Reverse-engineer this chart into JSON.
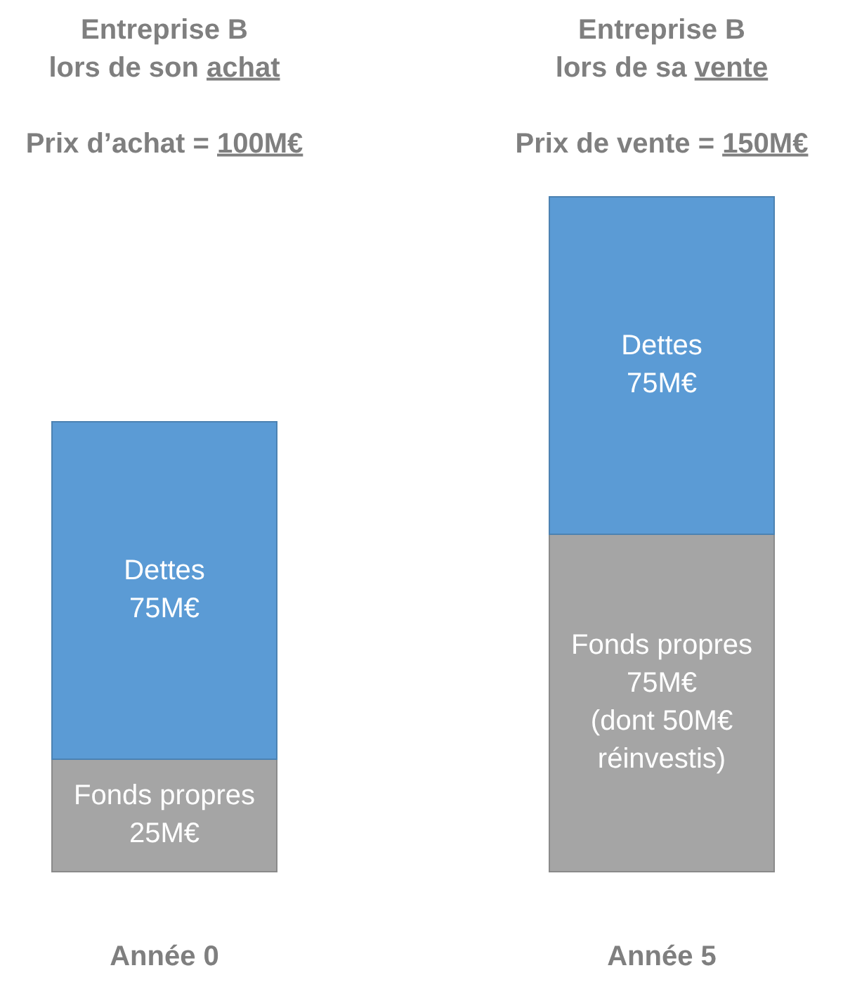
{
  "chart_data": {
    "type": "bar",
    "stacked": true,
    "tick_labels": "x",
    "categories": [
      "Année 0",
      "Année 5"
    ],
    "series": [
      {
        "name": "Fonds propres",
        "color": "#a5a5a5",
        "values": [
          25,
          75
        ],
        "value_labels": [
          "25M€",
          "75M€"
        ]
      },
      {
        "name": "Dettes",
        "color": "#5b9bd5",
        "values": [
          75,
          75
        ],
        "value_labels": [
          "75M€",
          "75M€"
        ]
      }
    ],
    "annotations": [
      "Entreprise B\nlors de son achat",
      "Prix d’achat = 100M€",
      "Entreprise B\nlors de sa vente",
      "Prix de vente = 150M€",
      "(dont 50M€\nréinvestis)"
    ]
  }
}
